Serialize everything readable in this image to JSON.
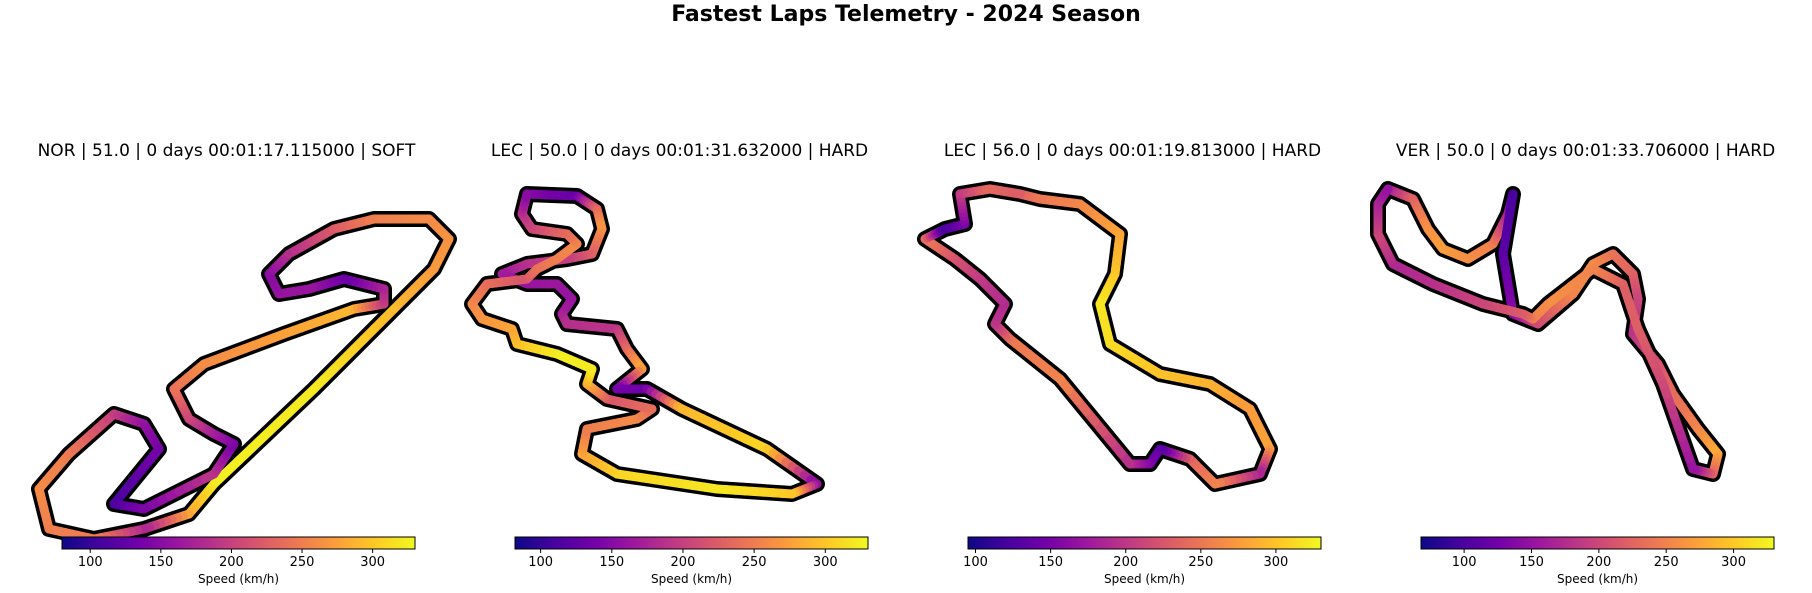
{
  "title": "Fastest Laps Telemetry - 2024 Season",
  "colormap": [
    "#0d0887",
    "#46039f",
    "#7201a8",
    "#9c179e",
    "#bd3786",
    "#d8576b",
    "#ed7953",
    "#fb9f3a",
    "#fdca26",
    "#f0f921"
  ],
  "chart_data": [
    {
      "type": "line",
      "title": "NOR | 51.0 | 0 days 00:01:17.115000 | SOFT",
      "colorbar": {
        "label": "Speed (km/h)",
        "range": [
          80,
          330
        ],
        "ticks": [
          100,
          150,
          200,
          250,
          300
        ]
      },
      "track": [
        [
          415,
          35,
          260
        ],
        [
          435,
          55,
          265
        ],
        [
          420,
          85,
          270
        ],
        [
          380,
          125,
          290
        ],
        [
          300,
          205,
          320
        ],
        [
          200,
          300,
          325
        ],
        [
          175,
          330,
          285
        ],
        [
          130,
          345,
          175
        ],
        [
          80,
          355,
          250
        ],
        [
          35,
          345,
          250
        ],
        [
          25,
          305,
          260
        ],
        [
          55,
          270,
          250
        ],
        [
          100,
          230,
          200
        ],
        [
          130,
          240,
          160
        ],
        [
          145,
          265,
          140
        ],
        [
          100,
          320,
          110
        ],
        [
          130,
          325,
          140
        ],
        [
          200,
          290,
          190
        ],
        [
          220,
          260,
          140
        ],
        [
          200,
          250,
          165
        ],
        [
          175,
          235,
          200
        ],
        [
          160,
          205,
          240
        ],
        [
          190,
          180,
          260
        ],
        [
          270,
          150,
          275
        ],
        [
          340,
          125,
          290
        ],
        [
          370,
          120,
          200
        ],
        [
          370,
          105,
          180
        ],
        [
          330,
          95,
          130
        ],
        [
          295,
          105,
          160
        ],
        [
          265,
          110,
          160
        ],
        [
          255,
          90,
          150
        ],
        [
          275,
          70,
          180
        ],
        [
          320,
          45,
          220
        ],
        [
          360,
          35,
          250
        ],
        [
          415,
          35,
          260
        ]
      ]
    },
    {
      "type": "line",
      "title": "LEC | 50.0 | 0 days 00:01:31.632000 | HARD",
      "colorbar": {
        "label": "Speed (km/h)",
        "range": [
          82,
          330
        ],
        "ticks": [
          100,
          150,
          200,
          250,
          300
        ]
      },
      "track": [
        [
          60,
          10,
          150
        ],
        [
          110,
          12,
          130
        ],
        [
          130,
          25,
          230
        ],
        [
          135,
          45,
          270
        ],
        [
          125,
          70,
          230
        ],
        [
          100,
          75,
          200
        ],
        [
          60,
          80,
          190
        ],
        [
          35,
          90,
          170
        ],
        [
          60,
          100,
          160
        ],
        [
          90,
          100,
          165
        ],
        [
          105,
          115,
          160
        ],
        [
          95,
          130,
          170
        ],
        [
          100,
          140,
          185
        ],
        [
          150,
          145,
          190
        ],
        [
          160,
          165,
          230
        ],
        [
          175,
          185,
          280
        ],
        [
          150,
          205,
          140
        ],
        [
          180,
          205,
          135
        ],
        [
          215,
          225,
          290
        ],
        [
          300,
          265,
          310
        ],
        [
          350,
          300,
          150
        ],
        [
          325,
          310,
          300
        ],
        [
          250,
          305,
          320
        ],
        [
          150,
          290,
          310
        ],
        [
          115,
          270,
          280
        ],
        [
          120,
          245,
          250
        ],
        [
          170,
          235,
          260
        ],
        [
          185,
          225,
          240
        ],
        [
          140,
          215,
          220
        ],
        [
          120,
          200,
          280
        ],
        [
          125,
          185,
          320
        ],
        [
          90,
          170,
          325
        ],
        [
          50,
          160,
          300
        ],
        [
          45,
          145,
          280
        ],
        [
          15,
          135,
          270
        ],
        [
          5,
          120,
          260
        ],
        [
          20,
          100,
          240
        ],
        [
          60,
          95,
          220
        ],
        [
          70,
          85,
          240
        ],
        [
          90,
          75,
          250
        ],
        [
          110,
          60,
          260
        ],
        [
          100,
          50,
          240
        ],
        [
          65,
          45,
          210
        ],
        [
          55,
          30,
          190
        ],
        [
          60,
          10,
          150
        ]
      ]
    },
    {
      "type": "line",
      "title": "LEC | 56.0 | 0 days 00:01:19.813000 | HARD",
      "colorbar": {
        "label": "Speed (km/h)",
        "range": [
          95,
          330
        ],
        "ticks": [
          100,
          150,
          200,
          250,
          300
        ]
      },
      "track": [
        [
          100,
          10,
          230
        ],
        [
          120,
          15,
          250
        ],
        [
          160,
          20,
          260
        ],
        [
          200,
          50,
          280
        ],
        [
          195,
          90,
          300
        ],
        [
          180,
          120,
          320
        ],
        [
          190,
          160,
          315
        ],
        [
          240,
          190,
          300
        ],
        [
          290,
          200,
          290
        ],
        [
          330,
          225,
          275
        ],
        [
          350,
          265,
          280
        ],
        [
          340,
          290,
          180
        ],
        [
          295,
          300,
          260
        ],
        [
          270,
          275,
          240
        ],
        [
          240,
          265,
          130
        ],
        [
          230,
          280,
          150
        ],
        [
          210,
          280,
          190
        ],
        [
          140,
          195,
          260
        ],
        [
          90,
          155,
          250
        ],
        [
          75,
          140,
          200
        ],
        [
          85,
          120,
          190
        ],
        [
          60,
          95,
          200
        ],
        [
          35,
          75,
          220
        ],
        [
          5,
          55,
          250
        ],
        [
          25,
          45,
          120
        ],
        [
          45,
          40,
          150
        ],
        [
          40,
          10,
          200
        ],
        [
          70,
          5,
          240
        ],
        [
          100,
          10,
          230
        ]
      ]
    },
    {
      "type": "line",
      "title": "VER | 50.0 | 0 days 00:01:33.706000 | HARD",
      "colorbar": {
        "label": "Speed (km/h)",
        "range": [
          68,
          330
        ],
        "ticks": [
          100,
          150,
          200,
          250,
          300
        ]
      },
      "track": [
        [
          15,
          5,
          150
        ],
        [
          40,
          15,
          220
        ],
        [
          55,
          45,
          260
        ],
        [
          70,
          65,
          270
        ],
        [
          95,
          75,
          260
        ],
        [
          120,
          60,
          250
        ],
        [
          135,
          30,
          170
        ],
        [
          140,
          10,
          100
        ],
        [
          130,
          70,
          110
        ],
        [
          140,
          130,
          140
        ],
        [
          165,
          140,
          200
        ],
        [
          200,
          110,
          250
        ],
        [
          220,
          80,
          260
        ],
        [
          240,
          70,
          240
        ],
        [
          260,
          90,
          225
        ],
        [
          265,
          115,
          200
        ],
        [
          260,
          150,
          180
        ],
        [
          285,
          180,
          210
        ],
        [
          300,
          210,
          230
        ],
        [
          325,
          245,
          250
        ],
        [
          345,
          270,
          280
        ],
        [
          340,
          290,
          230
        ],
        [
          320,
          285,
          150
        ],
        [
          290,
          200,
          200
        ],
        [
          265,
          145,
          220
        ],
        [
          250,
          100,
          220
        ],
        [
          220,
          85,
          250
        ],
        [
          175,
          120,
          260
        ],
        [
          160,
          135,
          250
        ],
        [
          150,
          130,
          220
        ],
        [
          110,
          120,
          200
        ],
        [
          60,
          100,
          180
        ],
        [
          20,
          80,
          170
        ],
        [
          5,
          50,
          200
        ],
        [
          5,
          20,
          170
        ],
        [
          15,
          5,
          150
        ]
      ]
    }
  ]
}
